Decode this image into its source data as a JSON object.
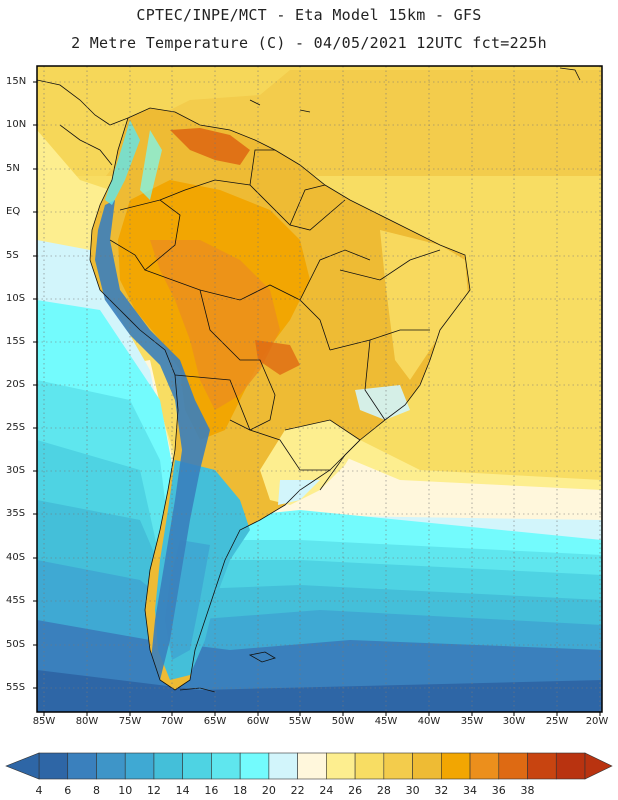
{
  "header": {
    "line1": "CPTEC/INPE/MCT -  Eta Model 15km - GFS",
    "line2": "2 Metre Temperature (C) - 04/05/2021 12UTC fct=225h"
  },
  "axes": {
    "lat_labels": [
      "15N",
      "10N",
      "5N",
      "EQ",
      "5S",
      "10S",
      "15S",
      "20S",
      "25S",
      "30S",
      "35S",
      "40S",
      "45S",
      "50S",
      "55S"
    ],
    "lon_labels": [
      "85W",
      "80W",
      "75W",
      "70W",
      "65W",
      "60W",
      "55W",
      "50W",
      "45W",
      "40W",
      "35W",
      "30W",
      "25W",
      "20W"
    ]
  },
  "colorbar": {
    "labels": [
      "4",
      "6",
      "8",
      "10",
      "12",
      "14",
      "16",
      "18",
      "20",
      "22",
      "24",
      "26",
      "28",
      "30",
      "32",
      "34",
      "36",
      "38"
    ],
    "colors": [
      "#2e66a6",
      "#3a80bd",
      "#3e95c8",
      "#3fa9d3",
      "#44bfd9",
      "#4ed3e3",
      "#5fe6ee",
      "#73fbfd",
      "#d2f5fb",
      "#fff7dc",
      "#fdee8f",
      "#f8dd63",
      "#f3cc4c",
      "#eebb34",
      "#f2a602",
      "#ec8f1c",
      "#de6a13",
      "#c84410",
      "#b93310"
    ],
    "low_arrow_color": "#2e66a6",
    "high_arrow_color": "#b93310"
  }
}
